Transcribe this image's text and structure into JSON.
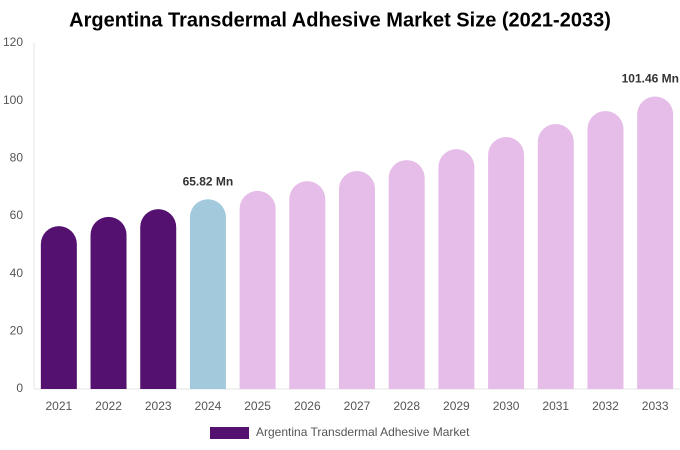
{
  "chart_data": {
    "type": "bar",
    "title": "Argentina Transdermal Adhesive Market Size (2021-2033)",
    "categories": [
      "2021",
      "2022",
      "2023",
      "2024",
      "2025",
      "2026",
      "2027",
      "2028",
      "2029",
      "2030",
      "2031",
      "2032",
      "2033"
    ],
    "series": [
      {
        "name": "Argentina Transdermal Adhesive Market",
        "color": "#541170",
        "colors": [
          "#541170",
          "#541170",
          "#541170",
          "#a3c9dd",
          "#e6bde9",
          "#e6bde9",
          "#e6bde9",
          "#e6bde9",
          "#e6bde9",
          "#e6bde9",
          "#e6bde9",
          "#e6bde9",
          "#e6bde9"
        ],
        "values": [
          56.5,
          59.7,
          62.4,
          65.82,
          68.7,
          72.1,
          75.6,
          79.4,
          83.2,
          87.4,
          91.9,
          96.4,
          101.46
        ],
        "value_labels": [
          null,
          null,
          null,
          "65.82 Mn",
          null,
          null,
          null,
          null,
          null,
          null,
          null,
          null,
          "101.46 Mn"
        ]
      }
    ],
    "ylim": [
      0,
      120
    ],
    "yticks": [
      0,
      20,
      40,
      60,
      80,
      100,
      120
    ],
    "grid": false
  }
}
